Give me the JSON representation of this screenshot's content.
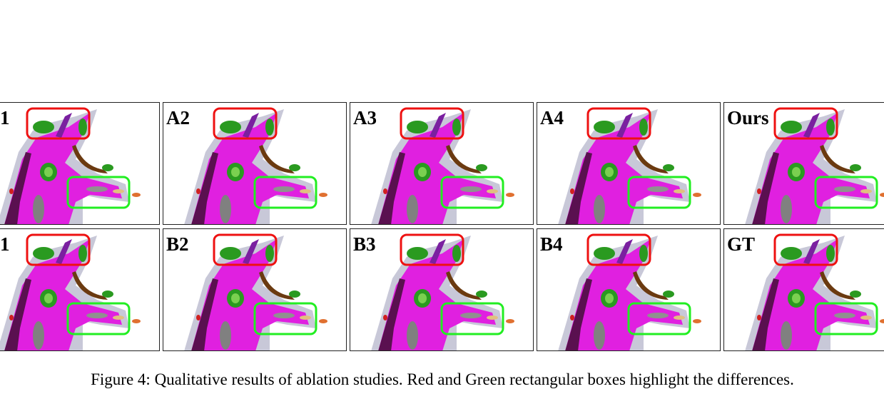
{
  "figure": {
    "rows": [
      [
        "1",
        "A2",
        "A3",
        "A4",
        "Ours"
      ],
      [
        "1",
        "B2",
        "B3",
        "B4",
        "GT"
      ]
    ]
  },
  "caption": "Figure 4: Qualitative results of ablation studies. Red and Green rectangular boxes highlight the differences."
}
